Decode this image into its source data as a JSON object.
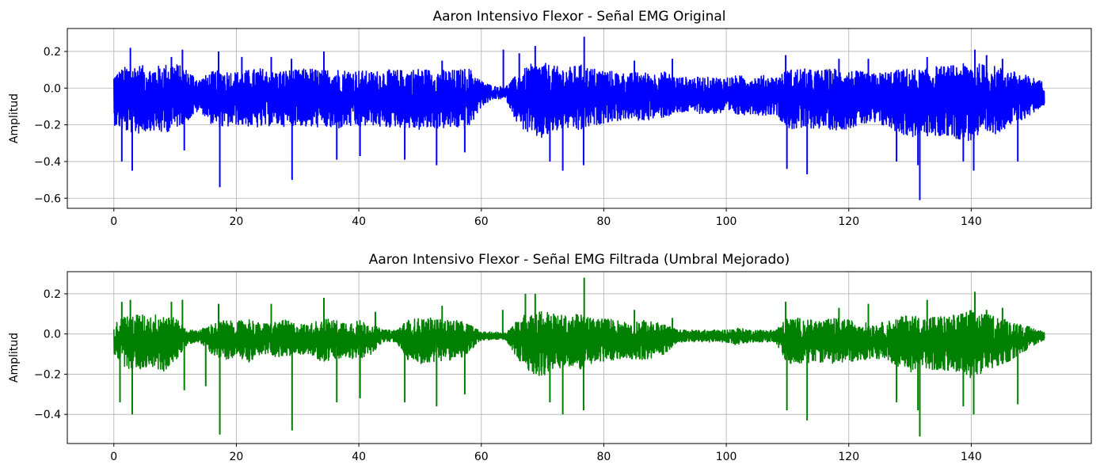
{
  "chart_data": [
    {
      "type": "line",
      "title": "Aaron Intensivo Flexor - Señal EMG Original",
      "xlabel": "",
      "ylabel": "Amplitud",
      "xlim": [
        -7.6,
        159.6
      ],
      "ylim": [
        -0.655,
        0.325
      ],
      "xticks": [
        0,
        20,
        40,
        60,
        80,
        100,
        120,
        140
      ],
      "xtick_labels": [
        "0",
        "20",
        "40",
        "60",
        "80",
        "100",
        "120",
        "140"
      ],
      "yticks": [
        -0.6,
        -0.4,
        -0.2,
        0.0,
        0.2
      ],
      "ytick_labels": [
        "−0.6",
        "−0.4",
        "−0.2",
        "0.0",
        "0.2"
      ],
      "grid": true,
      "color": "#0000ff",
      "series": [
        {
          "x": [
            0,
            2,
            4,
            6,
            8,
            10,
            12,
            14,
            16,
            18,
            20,
            22,
            24,
            26,
            28,
            30,
            32,
            34,
            36,
            38,
            40,
            42,
            44,
            46,
            48,
            50,
            52,
            54,
            56,
            58,
            60,
            62,
            64,
            66,
            68,
            70,
            72,
            74,
            76,
            78,
            80,
            82,
            84,
            86,
            88,
            90,
            92,
            94,
            96,
            98,
            100,
            102,
            104,
            106,
            108,
            110,
            112,
            114,
            116,
            118,
            120,
            122,
            124,
            126,
            128,
            130,
            132,
            134,
            136,
            138,
            140,
            142,
            144,
            146,
            148,
            150,
            152
          ],
          "upper": [
            0.08,
            0.12,
            0.13,
            0.11,
            0.13,
            0.14,
            0.1,
            0.05,
            0.09,
            0.1,
            0.09,
            0.1,
            0.11,
            0.09,
            0.1,
            0.1,
            0.11,
            0.1,
            0.11,
            0.1,
            0.1,
            0.09,
            0.1,
            0.1,
            0.1,
            0.11,
            0.1,
            0.1,
            0.1,
            0.11,
            0.04,
            0.01,
            0.01,
            0.08,
            0.13,
            0.14,
            0.12,
            0.11,
            0.13,
            0.11,
            0.1,
            0.09,
            0.08,
            0.09,
            0.08,
            0.09,
            0.06,
            0.06,
            0.06,
            0.06,
            0.06,
            0.07,
            0.06,
            0.07,
            0.06,
            0.1,
            0.11,
            0.1,
            0.1,
            0.11,
            0.1,
            0.09,
            0.08,
            0.09,
            0.1,
            0.11,
            0.1,
            0.12,
            0.12,
            0.13,
            0.14,
            0.13,
            0.12,
            0.1,
            0.08,
            0.06,
            0.03
          ],
          "lower": [
            -0.2,
            -0.24,
            -0.25,
            -0.23,
            -0.25,
            -0.22,
            -0.18,
            -0.12,
            -0.2,
            -0.22,
            -0.2,
            -0.21,
            -0.22,
            -0.2,
            -0.21,
            -0.2,
            -0.22,
            -0.21,
            -0.23,
            -0.21,
            -0.22,
            -0.2,
            -0.22,
            -0.21,
            -0.22,
            -0.23,
            -0.22,
            -0.22,
            -0.22,
            -0.22,
            -0.1,
            -0.06,
            -0.06,
            -0.2,
            -0.26,
            -0.28,
            -0.24,
            -0.22,
            -0.24,
            -0.21,
            -0.19,
            -0.18,
            -0.17,
            -0.18,
            -0.17,
            -0.16,
            -0.14,
            -0.13,
            -0.14,
            -0.14,
            -0.14,
            -0.15,
            -0.14,
            -0.15,
            -0.14,
            -0.22,
            -0.23,
            -0.22,
            -0.22,
            -0.23,
            -0.22,
            -0.2,
            -0.2,
            -0.21,
            -0.24,
            -0.27,
            -0.26,
            -0.27,
            -0.26,
            -0.28,
            -0.29,
            -0.27,
            -0.25,
            -0.21,
            -0.18,
            -0.14,
            -0.09
          ],
          "spikes": [
            [
              2.7,
              0.22
            ],
            [
              3.0,
              -0.45
            ],
            [
              1.3,
              -0.4
            ],
            [
              9.4,
              0.17
            ],
            [
              11.2,
              0.21
            ],
            [
              11.5,
              -0.34
            ],
            [
              17.1,
              0.2
            ],
            [
              17.3,
              -0.54
            ],
            [
              20.9,
              0.17
            ],
            [
              25.7,
              0.17
            ],
            [
              29.1,
              -0.5
            ],
            [
              29.0,
              0.16
            ],
            [
              34.3,
              0.2
            ],
            [
              36.4,
              -0.39
            ],
            [
              40.2,
              -0.37
            ],
            [
              47.5,
              -0.39
            ],
            [
              52.7,
              -0.42
            ],
            [
              53.6,
              0.15
            ],
            [
              57.3,
              -0.35
            ],
            [
              63.6,
              0.21
            ],
            [
              66.2,
              0.19
            ],
            [
              68.8,
              0.23
            ],
            [
              71.2,
              -0.4
            ],
            [
              73.3,
              -0.45
            ],
            [
              76.8,
              0.28
            ],
            [
              76.7,
              -0.42
            ],
            [
              85.0,
              0.15
            ],
            [
              91.2,
              0.16
            ],
            [
              109.7,
              0.18
            ],
            [
              109.9,
              -0.44
            ],
            [
              113.2,
              -0.47
            ],
            [
              118.4,
              0.16
            ],
            [
              123.2,
              0.16
            ],
            [
              127.8,
              -0.4
            ],
            [
              131.3,
              -0.42
            ],
            [
              131.6,
              -0.61
            ],
            [
              132.8,
              0.17
            ],
            [
              138.7,
              -0.4
            ],
            [
              140.4,
              -0.45
            ],
            [
              140.6,
              0.21
            ],
            [
              142.5,
              0.18
            ],
            [
              145.1,
              0.16
            ],
            [
              147.6,
              -0.4
            ]
          ]
        }
      ]
    },
    {
      "type": "line",
      "title": "Aaron Intensivo Flexor - Señal EMG Filtrada (Umbral Mejorado)",
      "xlabel": "",
      "ylabel": "Amplitud",
      "xlim": [
        -7.6,
        159.6
      ],
      "ylim": [
        -0.545,
        0.31
      ],
      "xticks": [
        0,
        20,
        40,
        60,
        80,
        100,
        120,
        140
      ],
      "xtick_labels": [
        "0",
        "20",
        "40",
        "60",
        "80",
        "100",
        "120",
        "140"
      ],
      "yticks": [
        -0.4,
        -0.2,
        0.0,
        0.2
      ],
      "ytick_labels": [
        "−0.4",
        "−0.2",
        "0.0",
        "0.2"
      ],
      "grid": true,
      "color": "#008000",
      "series": [
        {
          "x": [
            0,
            2,
            4,
            6,
            8,
            10,
            12,
            14,
            16,
            18,
            20,
            22,
            24,
            26,
            28,
            30,
            32,
            34,
            36,
            38,
            40,
            42,
            44,
            46,
            48,
            50,
            52,
            54,
            56,
            58,
            60,
            62,
            64,
            66,
            68,
            70,
            72,
            74,
            76,
            78,
            80,
            82,
            84,
            86,
            88,
            90,
            92,
            94,
            96,
            98,
            100,
            102,
            104,
            106,
            108,
            110,
            112,
            114,
            116,
            118,
            120,
            122,
            124,
            126,
            128,
            130,
            132,
            134,
            136,
            138,
            140,
            142,
            144,
            146,
            148,
            150,
            152
          ],
          "upper": [
            0.05,
            0.1,
            0.1,
            0.09,
            0.11,
            0.08,
            0.02,
            0.02,
            0.05,
            0.07,
            0.06,
            0.08,
            0.05,
            0.06,
            0.07,
            0.05,
            0.05,
            0.08,
            0.07,
            0.06,
            0.07,
            0.05,
            0.02,
            0.02,
            0.07,
            0.08,
            0.08,
            0.07,
            0.07,
            0.05,
            0.01,
            0.01,
            0.01,
            0.07,
            0.12,
            0.12,
            0.1,
            0.09,
            0.1,
            0.08,
            0.08,
            0.07,
            0.06,
            0.07,
            0.06,
            0.05,
            0.02,
            0.02,
            0.02,
            0.02,
            0.02,
            0.03,
            0.02,
            0.02,
            0.02,
            0.08,
            0.08,
            0.07,
            0.07,
            0.08,
            0.07,
            0.06,
            0.05,
            0.06,
            0.08,
            0.1,
            0.08,
            0.09,
            0.09,
            0.1,
            0.12,
            0.1,
            0.09,
            0.07,
            0.05,
            0.03,
            0.01
          ],
          "lower": [
            -0.1,
            -0.17,
            -0.18,
            -0.16,
            -0.19,
            -0.14,
            -0.05,
            -0.04,
            -0.1,
            -0.13,
            -0.11,
            -0.14,
            -0.1,
            -0.11,
            -0.12,
            -0.1,
            -0.1,
            -0.14,
            -0.13,
            -0.12,
            -0.13,
            -0.1,
            -0.04,
            -0.04,
            -0.13,
            -0.15,
            -0.14,
            -0.13,
            -0.13,
            -0.1,
            -0.03,
            -0.03,
            -0.03,
            -0.13,
            -0.2,
            -0.21,
            -0.18,
            -0.16,
            -0.18,
            -0.15,
            -0.14,
            -0.13,
            -0.12,
            -0.13,
            -0.12,
            -0.1,
            -0.04,
            -0.04,
            -0.04,
            -0.04,
            -0.04,
            -0.06,
            -0.04,
            -0.04,
            -0.04,
            -0.15,
            -0.15,
            -0.14,
            -0.14,
            -0.15,
            -0.14,
            -0.13,
            -0.12,
            -0.13,
            -0.16,
            -0.19,
            -0.17,
            -0.18,
            -0.18,
            -0.2,
            -0.22,
            -0.19,
            -0.17,
            -0.14,
            -0.1,
            -0.06,
            -0.03
          ],
          "spikes": [
            [
              1.3,
              0.16
            ],
            [
              2.7,
              0.17
            ],
            [
              3.0,
              -0.4
            ],
            [
              1.0,
              -0.34
            ],
            [
              9.4,
              0.16
            ],
            [
              11.2,
              0.17
            ],
            [
              11.5,
              -0.28
            ],
            [
              15.0,
              -0.26
            ],
            [
              17.1,
              0.15
            ],
            [
              17.3,
              -0.5
            ],
            [
              25.7,
              0.15
            ],
            [
              29.1,
              -0.48
            ],
            [
              34.3,
              0.18
            ],
            [
              36.4,
              -0.34
            ],
            [
              40.2,
              -0.32
            ],
            [
              42.7,
              0.11
            ],
            [
              47.5,
              -0.34
            ],
            [
              52.7,
              -0.36
            ],
            [
              53.6,
              0.14
            ],
            [
              57.3,
              -0.3
            ],
            [
              63.5,
              0.12
            ],
            [
              67.2,
              0.2
            ],
            [
              68.8,
              0.2
            ],
            [
              71.2,
              -0.34
            ],
            [
              73.3,
              -0.4
            ],
            [
              76.8,
              0.28
            ],
            [
              76.7,
              -0.38
            ],
            [
              85.0,
              0.12
            ],
            [
              91.2,
              0.08
            ],
            [
              109.7,
              0.16
            ],
            [
              109.9,
              -0.38
            ],
            [
              113.2,
              -0.43
            ],
            [
              118.4,
              0.13
            ],
            [
              123.2,
              0.15
            ],
            [
              127.8,
              -0.34
            ],
            [
              131.3,
              -0.38
            ],
            [
              131.6,
              -0.51
            ],
            [
              132.8,
              0.17
            ],
            [
              138.7,
              -0.36
            ],
            [
              140.4,
              -0.4
            ],
            [
              140.6,
              0.21
            ],
            [
              142.5,
              0.12
            ],
            [
              145.1,
              0.13
            ],
            [
              147.6,
              -0.35
            ]
          ]
        }
      ]
    }
  ]
}
